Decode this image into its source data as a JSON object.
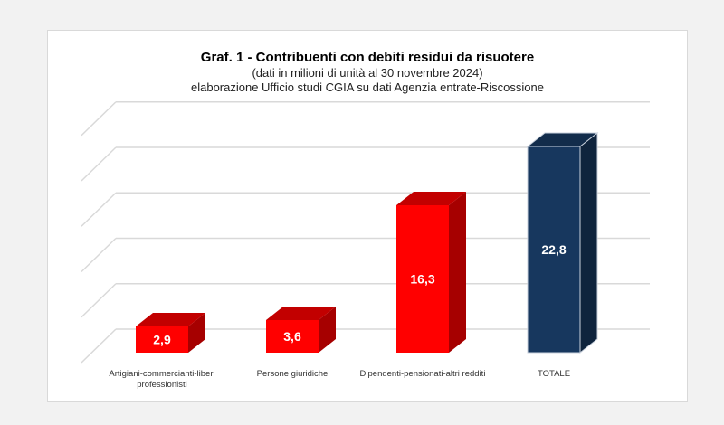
{
  "chart_data": {
    "type": "bar",
    "title": "Graf. 1 - Contribuenti con debiti residui da risuotere",
    "subtitle": "(dati in milioni di unità al 30 novembre 2024)",
    "source": "elaborazione Ufficio studi CGIA su dati Agenzia entrate-Riscossione",
    "categories": [
      "Artigiani-commercianti-liberi professionisti",
      "Persone giuridiche",
      "Dipendenti-pensionati-altri redditi",
      "TOTALE"
    ],
    "values": [
      2.9,
      3.6,
      16.3,
      22.8
    ],
    "value_labels": [
      "2,9",
      "3,6",
      "16,3",
      "22,8"
    ],
    "colors": [
      "#ff0000",
      "#ff0000",
      "#ff0000",
      "#17375e"
    ],
    "xlabel": "",
    "ylabel": "",
    "ylim": [
      0,
      25
    ],
    "grid": true,
    "style": "3d-column"
  }
}
